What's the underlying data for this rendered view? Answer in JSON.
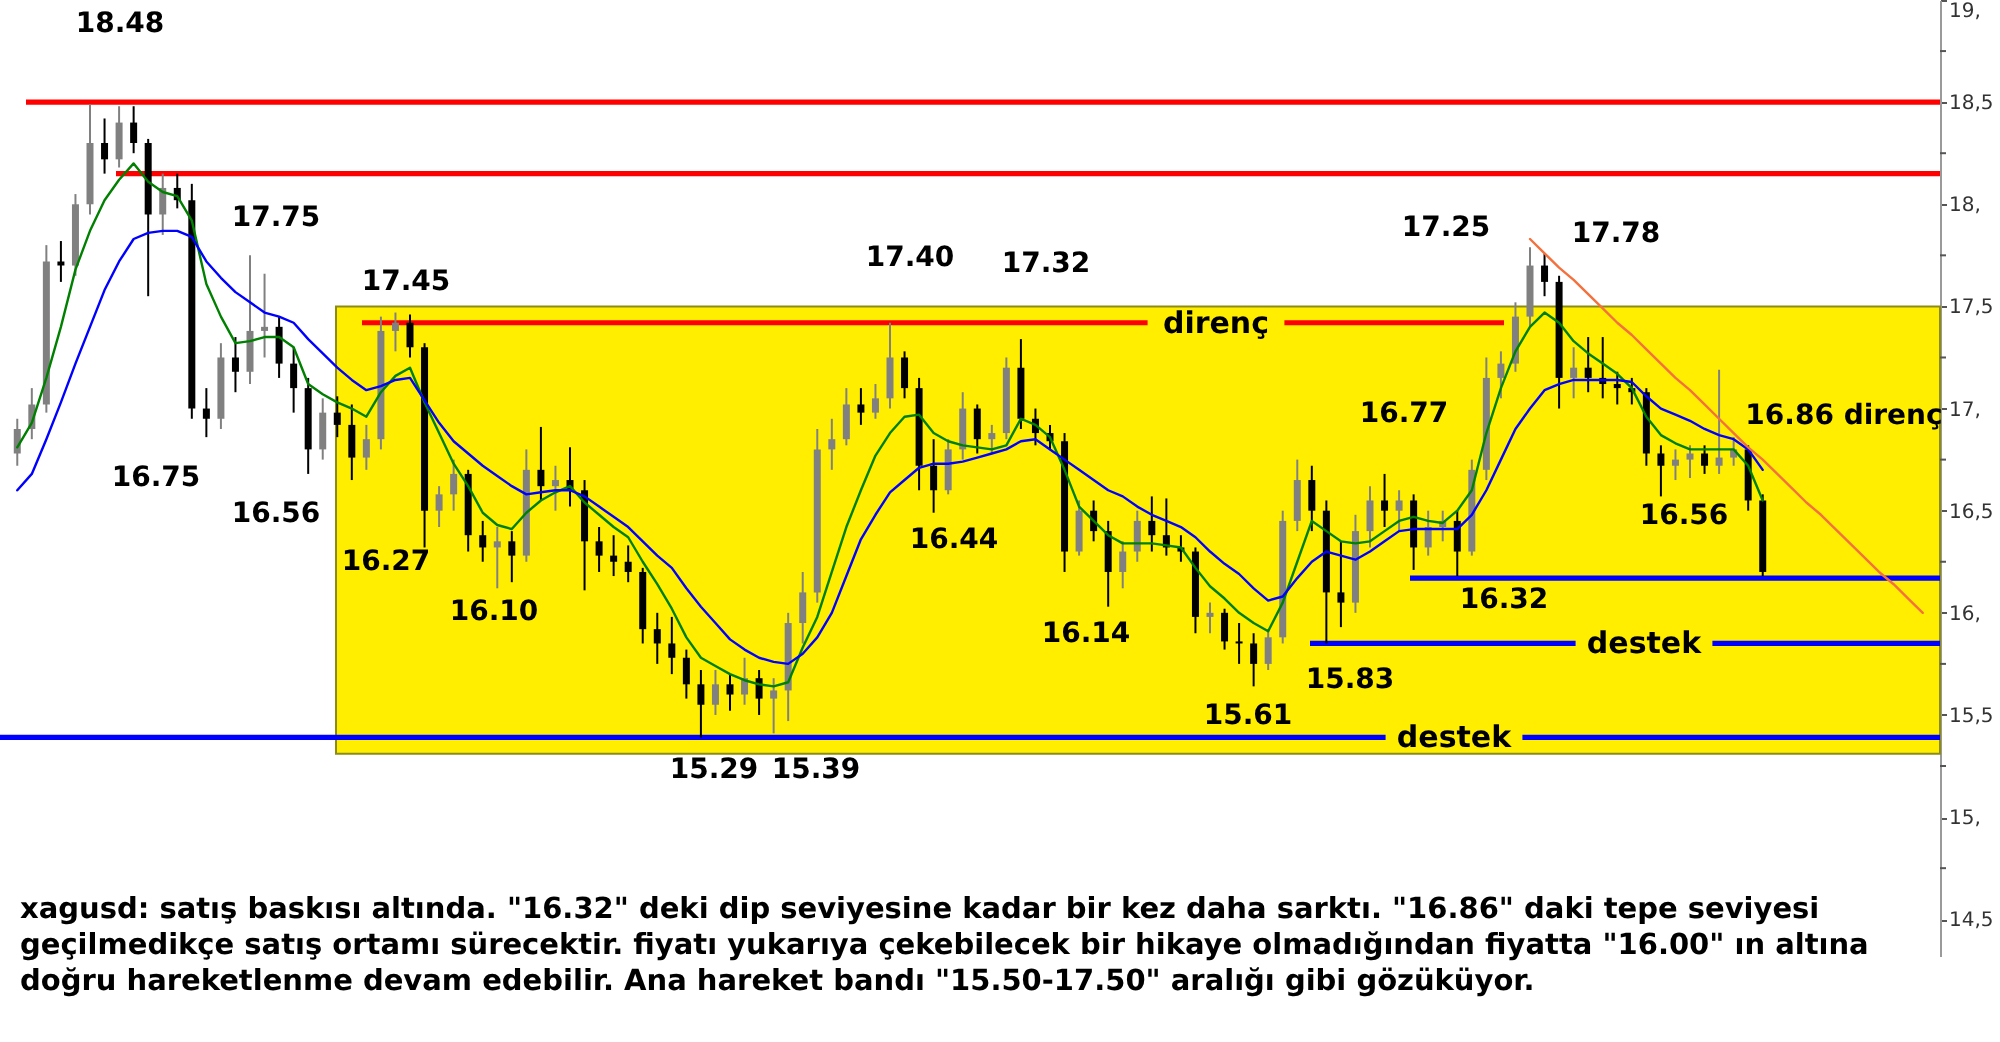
{
  "chart_data": {
    "type": "candlestick",
    "categories": [
      null,
      null,
      null,
      null,
      null,
      null,
      null,
      null,
      null,
      null,
      null,
      null,
      null,
      null,
      null,
      null,
      null,
      null,
      null,
      null,
      null,
      null,
      null,
      null,
      null,
      null,
      null,
      null,
      null,
      null,
      null,
      null,
      null,
      null,
      null,
      null,
      null,
      null,
      null,
      null,
      null,
      null,
      null,
      null,
      null,
      null,
      null,
      null,
      null,
      null,
      null,
      null,
      null,
      null,
      null,
      null,
      null,
      null,
      null,
      null,
      null,
      null,
      null,
      null,
      null,
      null,
      null,
      null,
      null,
      null,
      null,
      null,
      null,
      null,
      null,
      null,
      null,
      null,
      null,
      null,
      null,
      null,
      null,
      null,
      null,
      null,
      null,
      null,
      null,
      null,
      null,
      null,
      null,
      null,
      null,
      null,
      null,
      null,
      null,
      null,
      null,
      null,
      null,
      null,
      null,
      null,
      null,
      null,
      null,
      null,
      null,
      null,
      null,
      null,
      null,
      null,
      null,
      null,
      null,
      null,
      null,
      null,
      null,
      null,
      null,
      null,
      null,
      null,
      null,
      null,
      null,
      null
    ],
    "colors": [
      "#808080",
      "#808080",
      "#808080",
      "#000000",
      "#808080",
      "#808080",
      "#000000",
      "#808080",
      "#000000",
      "#000000",
      "#808080",
      "#000000",
      "#000000",
      "#000000",
      "#808080",
      "#000000",
      "#808080",
      "#808080",
      "#000000",
      "#000000",
      "#000000",
      "#808080",
      "#000000",
      "#000000",
      "#808080",
      "#808080",
      "#808080",
      "#000000",
      "#000000",
      "#808080",
      "#808080",
      "#000000",
      "#000000",
      "#808080",
      "#000000",
      "#808080",
      "#000000",
      "#808080",
      "#000000",
      "#000000",
      "#000000",
      "#000000",
      "#000000",
      "#000000",
      "#000000",
      "#000000",
      "#000000",
      "#000000",
      "#808080",
      "#000000",
      "#808080",
      "#000000",
      "#808080",
      "#808080",
      "#808080",
      "#808080",
      "#808080",
      "#808080",
      "#000000",
      "#808080",
      "#808080",
      "#000000",
      "#000000",
      "#000000",
      "#808080",
      "#808080",
      "#000000",
      "#808080",
      "#808080",
      "#000000",
      "#000000",
      "#000000",
      "#000000",
      "#808080",
      "#000000",
      "#000000",
      "#808080",
      "#808080",
      "#000000",
      "#000000",
      "#000000",
      "#000000",
      "#808080",
      "#000000",
      "#000000",
      "#000000",
      "#808080",
      "#808080",
      "#808080",
      "#000000",
      "#000000",
      "#000000",
      "#808080",
      "#808080",
      "#000000",
      "#808080",
      "#000000",
      "#808080",
      "#808080",
      "#000000",
      "#808080",
      "#808080",
      "#808080",
      "#808080",
      "#808080",
      "#000000",
      "#000000",
      "#808080",
      "#000000",
      "#000000",
      "#000000",
      "#000000",
      "#000000",
      "#000000",
      "#808080",
      "#808080",
      "#000000",
      "#808080",
      "#808080",
      "#000000",
      "#000000",
      null,
      null,
      null,
      null,
      null,
      null,
      null,
      null,
      null,
      null,
      null
    ],
    "ohlc": [
      [
        16.78,
        16.95,
        16.72,
        16.9
      ],
      [
        16.9,
        17.1,
        16.85,
        17.02
      ],
      [
        17.02,
        17.8,
        16.98,
        17.72
      ],
      [
        17.72,
        17.82,
        17.62,
        17.7
      ],
      [
        17.7,
        18.05,
        17.65,
        18.0
      ],
      [
        18.0,
        18.49,
        17.95,
        18.3
      ],
      [
        18.3,
        18.42,
        18.15,
        18.22
      ],
      [
        18.22,
        18.48,
        18.18,
        18.4
      ],
      [
        18.4,
        18.48,
        18.25,
        18.3
      ],
      [
        18.3,
        18.32,
        17.55,
        17.95
      ],
      [
        17.95,
        18.15,
        17.85,
        18.08
      ],
      [
        18.08,
        18.15,
        17.98,
        18.02
      ],
      [
        18.02,
        18.1,
        16.95,
        17.0
      ],
      [
        17.0,
        17.1,
        16.86,
        16.95
      ],
      [
        16.95,
        17.32,
        16.9,
        17.25
      ],
      [
        17.25,
        17.35,
        17.08,
        17.18
      ],
      [
        17.18,
        17.75,
        17.12,
        17.38
      ],
      [
        17.38,
        17.66,
        17.25,
        17.4
      ],
      [
        17.4,
        17.45,
        17.15,
        17.22
      ],
      [
        17.22,
        17.3,
        16.98,
        17.1
      ],
      [
        17.1,
        17.15,
        16.68,
        16.8
      ],
      [
        16.8,
        17.05,
        16.75,
        16.98
      ],
      [
        16.98,
        17.06,
        16.86,
        16.92
      ],
      [
        16.92,
        17.02,
        16.65,
        16.76
      ],
      [
        16.76,
        16.92,
        16.7,
        16.85
      ],
      [
        16.85,
        17.45,
        16.8,
        17.38
      ],
      [
        17.38,
        17.47,
        17.28,
        17.42
      ],
      [
        17.42,
        17.46,
        17.25,
        17.3
      ],
      [
        17.3,
        17.32,
        16.32,
        16.5
      ],
      [
        16.5,
        16.62,
        16.42,
        16.58
      ],
      [
        16.58,
        16.75,
        16.5,
        16.68
      ],
      [
        16.68,
        16.7,
        16.3,
        16.38
      ],
      [
        16.38,
        16.45,
        16.25,
        16.32
      ],
      [
        16.32,
        16.42,
        16.12,
        16.35
      ],
      [
        16.35,
        16.4,
        16.15,
        16.28
      ],
      [
        16.28,
        16.8,
        16.25,
        16.7
      ],
      [
        16.7,
        16.91,
        16.55,
        16.62
      ],
      [
        16.62,
        16.72,
        16.5,
        16.65
      ],
      [
        16.65,
        16.81,
        16.52,
        16.6
      ],
      [
        16.6,
        16.65,
        16.11,
        16.35
      ],
      [
        16.35,
        16.42,
        16.2,
        16.28
      ],
      [
        16.28,
        16.38,
        16.18,
        16.25
      ],
      [
        16.25,
        16.33,
        16.15,
        16.2
      ],
      [
        16.2,
        16.22,
        15.85,
        15.92
      ],
      [
        15.92,
        16.0,
        15.75,
        15.85
      ],
      [
        15.85,
        15.98,
        15.7,
        15.78
      ],
      [
        15.78,
        15.82,
        15.58,
        15.65
      ],
      [
        15.65,
        15.72,
        15.39,
        15.55
      ],
      [
        15.55,
        15.72,
        15.5,
        15.65
      ],
      [
        15.65,
        15.7,
        15.52,
        15.6
      ],
      [
        15.6,
        15.78,
        15.55,
        15.68
      ],
      [
        15.68,
        15.72,
        15.5,
        15.58
      ],
      [
        15.58,
        15.68,
        15.41,
        15.62
      ],
      [
        15.62,
        16.0,
        15.47,
        15.95
      ],
      [
        15.95,
        16.2,
        15.85,
        16.1
      ],
      [
        16.1,
        16.9,
        16.05,
        16.8
      ],
      [
        16.8,
        16.95,
        16.7,
        16.85
      ],
      [
        16.85,
        17.1,
        16.82,
        17.02
      ],
      [
        17.02,
        17.1,
        16.92,
        16.98
      ],
      [
        16.98,
        17.12,
        16.95,
        17.05
      ],
      [
        17.05,
        17.42,
        17.0,
        17.25
      ],
      [
        17.25,
        17.28,
        17.05,
        17.1
      ],
      [
        17.1,
        17.15,
        16.6,
        16.72
      ],
      [
        16.72,
        16.85,
        16.49,
        16.6
      ],
      [
        16.6,
        16.85,
        16.58,
        16.8
      ],
      [
        16.8,
        17.08,
        16.75,
        17.0
      ],
      [
        17.0,
        17.02,
        16.78,
        16.85
      ],
      [
        16.85,
        16.92,
        16.78,
        16.88
      ],
      [
        16.88,
        17.25,
        16.85,
        17.2
      ],
      [
        17.2,
        17.34,
        16.9,
        16.95
      ],
      [
        16.95,
        17.0,
        16.82,
        16.88
      ],
      [
        16.88,
        16.92,
        16.8,
        16.84
      ],
      [
        16.84,
        16.88,
        16.2,
        16.3
      ],
      [
        16.3,
        16.55,
        16.28,
        16.5
      ],
      [
        16.5,
        16.55,
        16.35,
        16.4
      ],
      [
        16.4,
        16.45,
        16.03,
        16.2
      ],
      [
        16.2,
        16.35,
        16.12,
        16.3
      ],
      [
        16.3,
        16.5,
        16.25,
        16.45
      ],
      [
        16.45,
        16.57,
        16.3,
        16.38
      ],
      [
        16.38,
        16.56,
        16.28,
        16.32
      ],
      [
        16.32,
        16.38,
        16.25,
        16.3
      ],
      [
        16.3,
        16.32,
        15.9,
        15.98
      ],
      [
        15.98,
        16.05,
        15.9,
        16.0
      ],
      [
        16.0,
        16.02,
        15.82,
        15.86
      ],
      [
        15.86,
        15.95,
        15.75,
        15.85
      ],
      [
        15.85,
        15.9,
        15.64,
        15.75
      ],
      [
        15.75,
        15.92,
        15.72,
        15.88
      ],
      [
        15.88,
        16.5,
        15.85,
        16.45
      ],
      [
        16.45,
        16.75,
        16.4,
        16.65
      ],
      [
        16.65,
        16.72,
        16.4,
        16.5
      ],
      [
        16.5,
        16.55,
        15.85,
        16.1
      ],
      [
        16.1,
        16.35,
        15.93,
        16.05
      ],
      [
        16.05,
        16.48,
        16.0,
        16.4
      ],
      [
        16.4,
        16.62,
        16.32,
        16.55
      ],
      [
        16.55,
        16.68,
        16.42,
        16.5
      ],
      [
        16.5,
        16.6,
        16.4,
        16.55
      ],
      [
        16.55,
        16.58,
        16.21,
        16.32
      ],
      [
        16.32,
        16.5,
        16.28,
        16.42
      ],
      [
        16.42,
        16.5,
        16.35,
        16.45
      ],
      [
        16.45,
        16.5,
        16.18,
        16.3
      ],
      [
        16.3,
        16.75,
        16.28,
        16.7
      ],
      [
        16.7,
        17.25,
        16.65,
        17.15
      ],
      [
        17.15,
        17.28,
        17.05,
        17.22
      ],
      [
        17.22,
        17.52,
        17.18,
        17.45
      ],
      [
        17.45,
        17.79,
        17.4,
        17.7
      ],
      [
        17.7,
        17.76,
        17.55,
        17.62
      ],
      [
        17.62,
        17.65,
        17.0,
        17.15
      ],
      [
        17.15,
        17.3,
        17.05,
        17.2
      ],
      [
        17.2,
        17.35,
        17.08,
        17.15
      ],
      [
        17.15,
        17.35,
        17.05,
        17.12
      ],
      [
        17.12,
        17.18,
        17.02,
        17.1
      ],
      [
        17.1,
        17.15,
        17.02,
        17.08
      ],
      [
        17.08,
        17.1,
        16.72,
        16.78
      ],
      [
        16.78,
        16.82,
        16.57,
        16.72
      ],
      [
        16.72,
        16.8,
        16.65,
        16.75
      ],
      [
        16.75,
        16.82,
        16.66,
        16.78
      ],
      [
        16.78,
        16.82,
        16.68,
        16.72
      ],
      [
        16.72,
        17.19,
        16.68,
        16.76
      ],
      [
        16.76,
        16.86,
        16.72,
        16.8
      ],
      [
        16.8,
        16.82,
        16.5,
        16.55
      ],
      [
        16.55,
        16.58,
        16.18,
        16.2
      ],
      null,
      null,
      null,
      null,
      null,
      null,
      null,
      null,
      null,
      null,
      null
    ],
    "series": [
      {
        "type": "line",
        "color": "#008000",
        "values": [
          16.81,
          16.93,
          17.15,
          17.4,
          17.68,
          17.87,
          18.02,
          18.12,
          18.2,
          18.11,
          18.06,
          18.04,
          17.92,
          17.61,
          17.45,
          17.32,
          17.33,
          17.35,
          17.35,
          17.3,
          17.12,
          17.07,
          17.03,
          17.0,
          16.96,
          17.08,
          17.16,
          17.2,
          17.03,
          16.88,
          16.73,
          16.62,
          16.49,
          16.43,
          16.41,
          16.49,
          16.55,
          16.59,
          16.62,
          16.54,
          16.48,
          16.42,
          16.37,
          16.25,
          16.14,
          16.02,
          15.88,
          15.78,
          15.74,
          15.7,
          15.67,
          15.65,
          15.64,
          15.66,
          15.83,
          15.98,
          16.2,
          16.42,
          16.6,
          16.77,
          16.88,
          16.96,
          16.97,
          16.88,
          16.84,
          16.82,
          16.81,
          16.8,
          16.82,
          16.95,
          16.92,
          16.86,
          16.7,
          16.52,
          16.45,
          16.38,
          16.34,
          16.34,
          16.34,
          16.33,
          16.32,
          16.22,
          16.13,
          16.07,
          16.0,
          15.95,
          15.91,
          16.05,
          16.25,
          16.45,
          16.4,
          16.35,
          16.34,
          16.35,
          16.4,
          16.45,
          16.47,
          16.45,
          16.44,
          16.5,
          16.6,
          16.88,
          17.1,
          17.28,
          17.4,
          17.47,
          17.42,
          17.33,
          17.27,
          17.22,
          17.17,
          17.1,
          16.96,
          16.87,
          16.83,
          16.8,
          16.8,
          16.8,
          16.8,
          16.72,
          16.55,
          null,
          null,
          null,
          null,
          null,
          null,
          null,
          null,
          null,
          null,
          null
        ]
      },
      {
        "type": "line",
        "color": "#0000ff",
        "values": [
          16.6,
          16.68,
          16.85,
          17.03,
          17.22,
          17.4,
          17.58,
          17.72,
          17.83,
          17.86,
          17.87,
          17.87,
          17.84,
          17.72,
          17.64,
          17.57,
          17.52,
          17.47,
          17.45,
          17.42,
          17.34,
          17.27,
          17.2,
          17.14,
          17.09,
          17.11,
          17.14,
          17.15,
          17.04,
          16.93,
          16.84,
          16.78,
          16.72,
          16.67,
          16.62,
          16.58,
          16.59,
          16.6,
          16.6,
          16.57,
          16.52,
          16.47,
          16.42,
          16.35,
          16.28,
          16.22,
          16.12,
          16.03,
          15.95,
          15.87,
          15.82,
          15.78,
          15.76,
          15.75,
          15.8,
          15.88,
          16.0,
          16.18,
          16.36,
          16.48,
          16.59,
          16.65,
          16.71,
          16.73,
          16.73,
          16.74,
          16.76,
          16.78,
          16.8,
          16.84,
          16.85,
          16.8,
          16.75,
          16.7,
          16.65,
          16.6,
          16.57,
          16.52,
          16.48,
          16.45,
          16.42,
          16.37,
          16.3,
          16.24,
          16.19,
          16.12,
          16.06,
          16.08,
          16.17,
          16.25,
          16.3,
          16.28,
          16.26,
          16.3,
          16.35,
          16.4,
          16.41,
          16.41,
          16.41,
          16.41,
          16.48,
          16.6,
          16.75,
          16.9,
          17.0,
          17.09,
          17.12,
          17.14,
          17.14,
          17.14,
          17.14,
          17.13,
          17.06,
          17.0,
          16.97,
          16.94,
          16.9,
          16.87,
          16.85,
          16.8,
          16.7,
          null,
          null,
          null,
          null,
          null,
          null,
          null,
          null,
          null,
          null,
          null
        ]
      },
      {
        "type": "line",
        "color": "#f4703c",
        "values": [
          null,
          null,
          null,
          null,
          null,
          null,
          null,
          null,
          null,
          null,
          null,
          null,
          null,
          null,
          null,
          null,
          null,
          null,
          null,
          null,
          null,
          null,
          null,
          null,
          null,
          null,
          null,
          null,
          null,
          null,
          null,
          null,
          null,
          null,
          null,
          null,
          null,
          null,
          null,
          null,
          null,
          null,
          null,
          null,
          null,
          null,
          null,
          null,
          null,
          null,
          null,
          null,
          null,
          null,
          null,
          null,
          null,
          null,
          null,
          null,
          null,
          null,
          null,
          null,
          null,
          null,
          null,
          null,
          null,
          null,
          null,
          null,
          null,
          null,
          null,
          null,
          null,
          null,
          null,
          null,
          null,
          null,
          null,
          null,
          null,
          null,
          null,
          null,
          null,
          null,
          null,
          null,
          null,
          null,
          null,
          null,
          null,
          null,
          null,
          null,
          null,
          null,
          null,
          null,
          17.83,
          17.76,
          17.69,
          17.63,
          17.56,
          17.49,
          17.42,
          17.36,
          17.29,
          17.22,
          17.15,
          17.09,
          17.02,
          16.95,
          16.88,
          16.81,
          16.75,
          16.68,
          16.61,
          16.54,
          16.48,
          16.41,
          16.34,
          16.27,
          16.2,
          16.14,
          16.07,
          16.0
        ]
      }
    ],
    "ylim": [
      14.32,
      19.0
    ],
    "yticks": [
      {
        "value": 14.5,
        "label": "14,5"
      },
      {
        "value": 14.75,
        "label": null
      },
      {
        "value": 15,
        "label": "15,"
      },
      {
        "value": 15.25,
        "label": null
      },
      {
        "value": 15.5,
        "label": "15,5"
      },
      {
        "value": 15.75,
        "label": null
      },
      {
        "value": 16,
        "label": "16,"
      },
      {
        "value": 16.25,
        "label": null
      },
      {
        "value": 16.5,
        "label": "16,5"
      },
      {
        "value": 16.75,
        "label": null
      },
      {
        "value": 17,
        "label": "17,"
      },
      {
        "value": 17.25,
        "label": null
      },
      {
        "value": 17.5,
        "label": "17,5"
      },
      {
        "value": 17.75,
        "label": null
      },
      {
        "value": 18,
        "label": "18,"
      },
      {
        "value": 18.25,
        "label": null
      },
      {
        "value": 18.5,
        "label": "18,5"
      },
      {
        "value": 18.75,
        "label": null
      },
      {
        "value": 19,
        "label": "19,"
      }
    ],
    "tick_labels": "y",
    "grid": false,
    "bands": [
      {
        "axis": "y",
        "from": 15.31,
        "to": 17.5,
        "color": "#ffee00"
      }
    ],
    "ref_lines": [
      {
        "axis": "y",
        "value": 18.5,
        "color": "#ff0000"
      },
      {
        "axis": "y",
        "value": 18.15,
        "color": "#ff0000"
      },
      {
        "axis": "y",
        "value": 17.42,
        "label": "direnç",
        "color": "#ff0000"
      },
      {
        "axis": "y",
        "value": 16.17,
        "color": "#0000ff"
      },
      {
        "axis": "y",
        "value": 15.85,
        "label": "destek",
        "color": "#0000ff"
      },
      {
        "axis": "y",
        "value": 15.39,
        "label": "destek",
        "color": "#0000ff"
      }
    ],
    "annotations": [
      "18.48",
      "17.75",
      "16.75",
      "16.56",
      "17.45",
      "16.27",
      "16.10",
      "15.29",
      "15.39",
      "17.40",
      "16.44",
      "17.32",
      "16.14",
      "15.61",
      "15.83",
      "16.77",
      "17.25",
      "16.32",
      "17.78",
      "16.56",
      "16.86 direnç",
      "xagusd: satış baskısı altında. \"16.32\" deki dip seviyesine kadar bir kez daha sarktı. \"16.86\" daki tepe seviyesi geçilmedikçe satış ortamı sürecektir. fiyatı yukarıya çekebilecek bir hikaye olmadığından fiyatta \"16.00\" ın altına doğru hareketlenme devam edebilir. Ana hareket bandı \"15.50-17.50\" aralığı gibi gözüküyor."
    ]
  }
}
